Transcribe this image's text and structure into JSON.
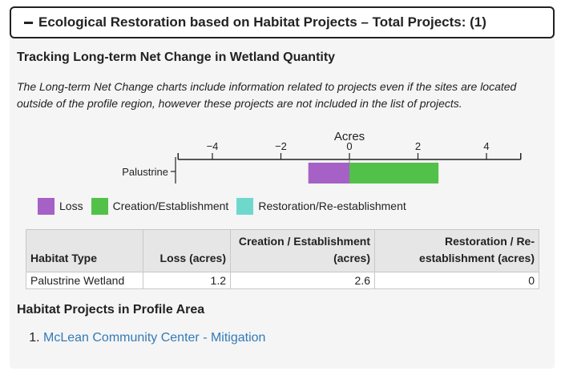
{
  "panel": {
    "header_title": "Ecological Restoration based on Habitat Projects – Total Projects: (1)",
    "section_title": "Tracking Long-term Net Change in Wetland Quantity",
    "note": "The Long-term Net Change charts include information related to projects even if the sites are located outside of the profile region, however these projects are not included in the list of projects."
  },
  "chart_data": {
    "type": "bar",
    "orientation": "horizontal",
    "categories": [
      "Palustrine"
    ],
    "xlabel": "Acres",
    "xlim": [
      -5,
      5
    ],
    "x_ticks": [
      -4,
      -2,
      0,
      2,
      4
    ],
    "series": [
      {
        "name": "Loss",
        "values": [
          -1.2
        ],
        "color": "#a661c7"
      },
      {
        "name": "Creation/Establishment",
        "values": [
          2.6
        ],
        "color": "#52c149"
      },
      {
        "name": "Restoration/Re-establishment",
        "values": [
          0
        ],
        "color": "#6fd8cc"
      }
    ],
    "legend_position": "bottom-left"
  },
  "table": {
    "headers": [
      "Habitat Type",
      "Loss (acres)",
      "Creation / Establishment (acres)",
      "Restoration / Re-establishment (acres)"
    ],
    "rows": [
      [
        "Palustrine Wetland",
        "1.2",
        "2.6",
        "0"
      ]
    ]
  },
  "projects": {
    "title": "Habitat Projects in Profile Area",
    "items": [
      "McLean Community Center - Mitigation"
    ]
  }
}
